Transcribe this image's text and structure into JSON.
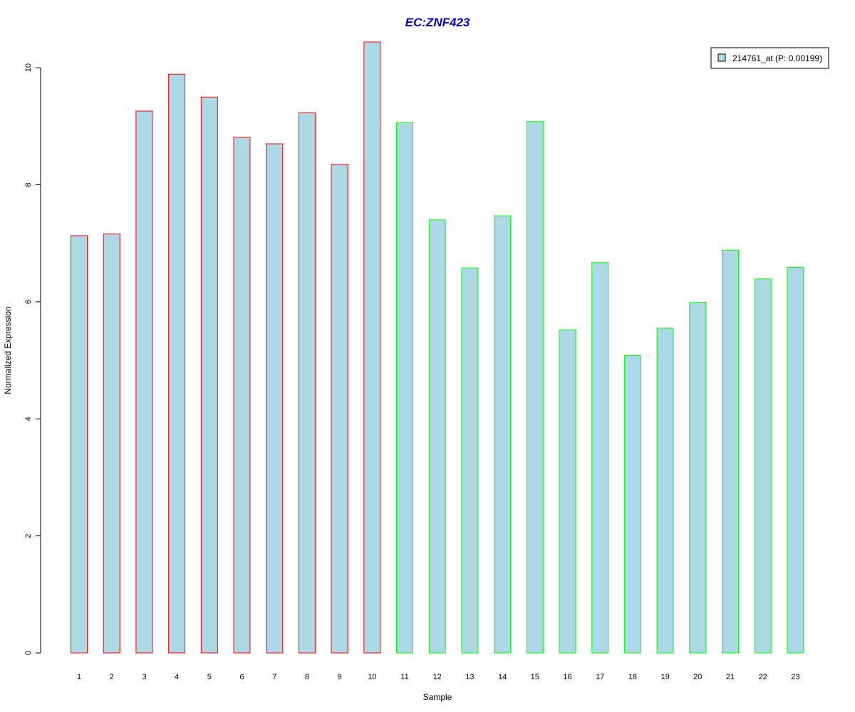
{
  "chart_data": {
    "type": "bar",
    "title": "EC:ZNF423",
    "xlabel": "Sample",
    "ylabel": "Normalized Expression",
    "categories": [
      "1",
      "2",
      "3",
      "4",
      "5",
      "6",
      "7",
      "8",
      "9",
      "10",
      "11",
      "12",
      "13",
      "14",
      "15",
      "16",
      "17",
      "18",
      "19",
      "20",
      "21",
      "22",
      "23"
    ],
    "series": [
      {
        "name": "214761_at (P: 0.00199)",
        "values": [
          7.13,
          7.16,
          9.26,
          9.89,
          9.5,
          8.81,
          8.7,
          9.23,
          8.35,
          10.44,
          9.06,
          7.4,
          6.58,
          7.47,
          9.08,
          5.52,
          6.67,
          5.08,
          5.55,
          5.99,
          6.88,
          6.39,
          6.59
        ]
      }
    ],
    "group_border": [
      "red",
      "red",
      "red",
      "red",
      "red",
      "red",
      "red",
      "red",
      "red",
      "red",
      "green",
      "green",
      "green",
      "green",
      "green",
      "green",
      "green",
      "green",
      "green",
      "green",
      "green",
      "green",
      "green"
    ],
    "yticks": [
      0,
      2,
      4,
      6,
      8,
      10
    ],
    "ylim": [
      0,
      10.44
    ],
    "grid": false,
    "legend_position": "top-right",
    "colors": {
      "bar_fill": "#ADD8E6",
      "border_red": "#FF0000",
      "border_green": "#00FF00",
      "title": "#0000CC",
      "axis": "#000000"
    }
  }
}
